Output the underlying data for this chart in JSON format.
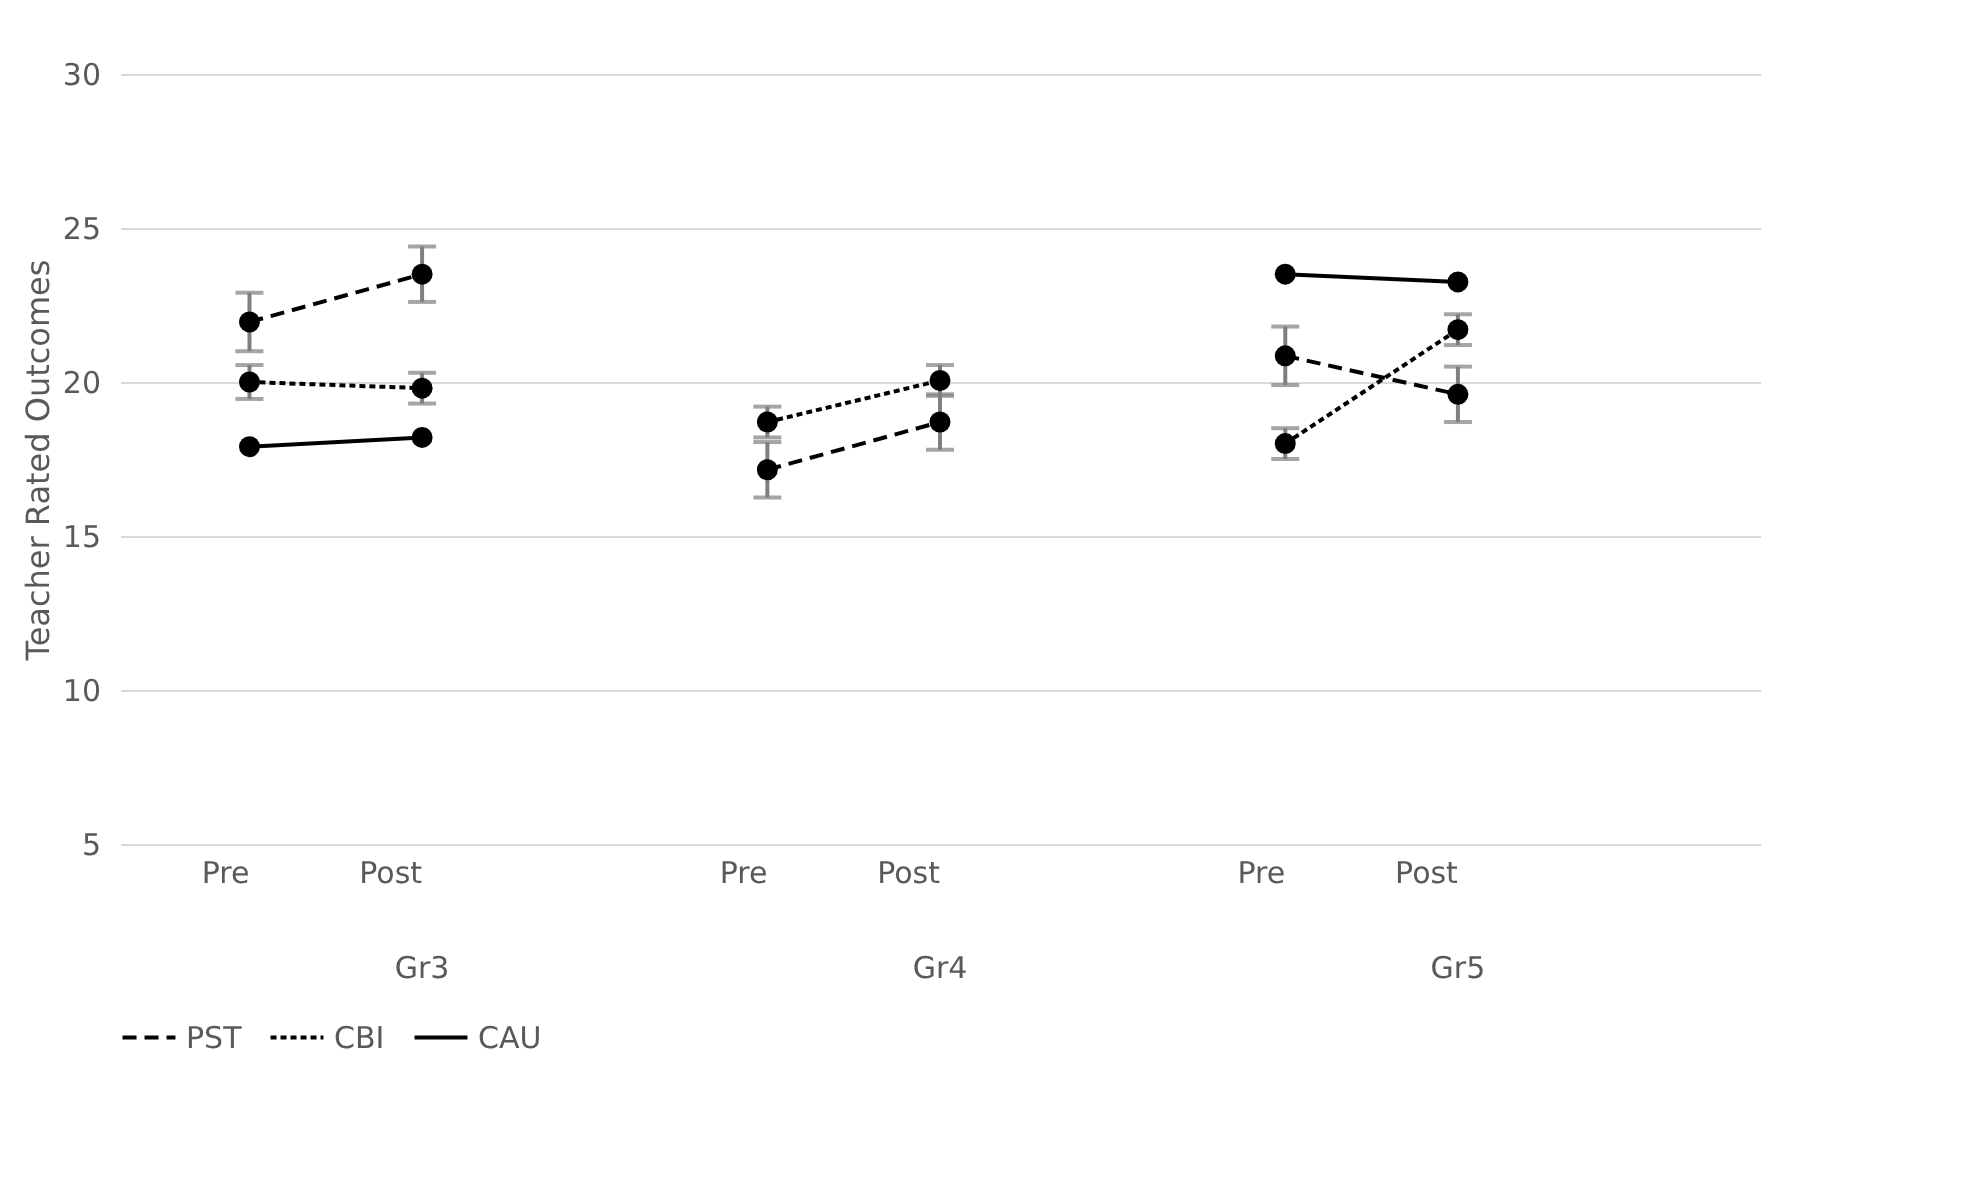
{
  "chart_data": {
    "type": "line",
    "ylabel": "Teacher Rated Outcomes",
    "categories": [
      "Pre",
      "Post",
      null,
      "Pre",
      "Post",
      null,
      "Pre",
      "Post",
      null
    ],
    "annotations": [
      "Gr3",
      "Gr4",
      "Gr5"
    ],
    "series": [
      {
        "name": "PST",
        "color": "#000000",
        "line_style": "dashed",
        "values": [
          21.95,
          23.5,
          null,
          17.15,
          18.7,
          null,
          20.85,
          19.6,
          null
        ],
        "errors": [
          0.95,
          0.9,
          null,
          0.9,
          0.9,
          null,
          0.95,
          0.9,
          null
        ]
      },
      {
        "name": "CBI",
        "color": "#000000",
        "line_style": "dotted",
        "values": [
          20.0,
          19.8,
          null,
          18.7,
          20.05,
          null,
          18.0,
          21.7,
          null
        ],
        "errors": [
          0.55,
          0.5,
          null,
          0.5,
          0.5,
          null,
          0.5,
          0.5,
          null
        ]
      },
      {
        "name": "CAU",
        "color": "#000000",
        "line_style": "solid",
        "values": [
          17.9,
          18.2,
          null,
          null,
          null,
          null,
          23.5,
          23.25,
          null
        ]
      }
    ],
    "ylim": [
      5,
      30
    ],
    "yticks": [
      5,
      10,
      15,
      20,
      25,
      30
    ],
    "grid": "y",
    "legend": "bottom",
    "marker": "circle"
  }
}
